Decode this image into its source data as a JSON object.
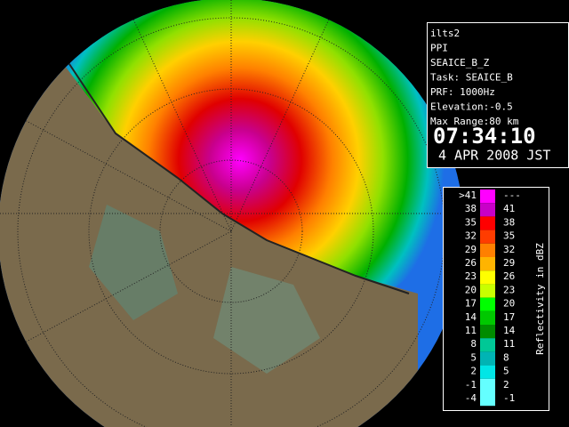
{
  "info": {
    "lines": [
      "ilts2",
      "PPI",
      "SEAICE_B_Z",
      "Task: SEAICE_B",
      "PRF: 1000Hz",
      "Elevation:-0.5",
      "Max Range:80 km"
    ],
    "time": "07:34:10",
    "date": "4 APR 2008 JST"
  },
  "legend": {
    "title": "Reflectivity in dBZ",
    "rows": [
      {
        "low": ">41",
        "high": "---",
        "color": "#ff00ff"
      },
      {
        "low": "38",
        "high": "41",
        "color": "#c800c8"
      },
      {
        "low": "35",
        "high": "38",
        "color": "#ff0000"
      },
      {
        "low": "32",
        "high": "35",
        "color": "#ff3c00"
      },
      {
        "low": "29",
        "high": "32",
        "color": "#ff8000"
      },
      {
        "low": "26",
        "high": "29",
        "color": "#ffb400"
      },
      {
        "low": "23",
        "high": "26",
        "color": "#ffff00"
      },
      {
        "low": "20",
        "high": "23",
        "color": "#c8ff00"
      },
      {
        "low": "17",
        "high": "20",
        "color": "#00ff00"
      },
      {
        "low": "14",
        "high": "17",
        "color": "#00c800"
      },
      {
        "low": "11",
        "high": "14",
        "color": "#008c00"
      },
      {
        "low": "8",
        "high": "11",
        "color": "#00c896"
      },
      {
        "low": "5",
        "high": "8",
        "color": "#00b4b4"
      },
      {
        "low": "2",
        "high": "5",
        "color": "#00e6e6"
      },
      {
        "low": "-1",
        "high": "2",
        "color": "#64ffff"
      },
      {
        "low": "-4",
        "high": "-1",
        "color": "#64ffff"
      }
    ]
  }
}
